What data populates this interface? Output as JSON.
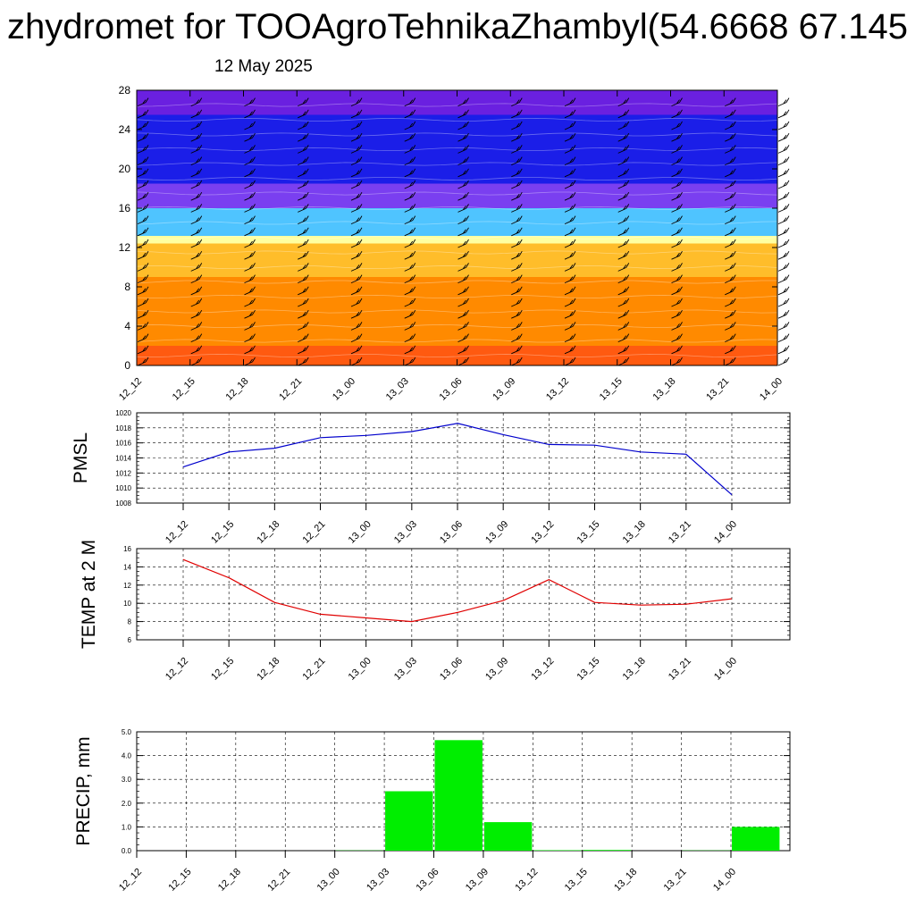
{
  "title": "zhydromet for TOOAgroTehnikaZhambyl(54.6668 67.145",
  "date": "12 May 2025",
  "colors": {
    "pmsl_line": "#0000cc",
    "temp_line": "#e00000",
    "precip_bar": "#00ee00",
    "grid": "#000000"
  },
  "chart_data": [
    {
      "type": "heatmap",
      "name": "cross-section",
      "categories": [
        "12_12",
        "12_15",
        "12_18",
        "12_21",
        "13_00",
        "13_03",
        "13_06",
        "13_09",
        "13_12",
        "13_15",
        "13_18",
        "13_21",
        "14_00"
      ],
      "yticks": [
        "0",
        "4",
        "8",
        "12",
        "16",
        "20",
        "24",
        "28"
      ],
      "ylim": [
        0,
        28
      ],
      "color_bands": [
        {
          "from": 0,
          "to": 2,
          "color": "#ff5a10"
        },
        {
          "from": 2,
          "to": 9,
          "color": "#ff8a00"
        },
        {
          "from": 9,
          "to": 12.4,
          "color": "#ffbd2a"
        },
        {
          "from": 12.4,
          "to": 13.2,
          "color": "#ffffa0"
        },
        {
          "from": 13.2,
          "to": 16,
          "color": "#4fc4ff"
        },
        {
          "from": 16,
          "to": 18.5,
          "color": "#7a3ff0"
        },
        {
          "from": 18.5,
          "to": 25.5,
          "color": "#1b1ee8"
        },
        {
          "from": 25.5,
          "to": 28,
          "color": "#6a20e0"
        }
      ],
      "wind_barbs": true
    },
    {
      "type": "line",
      "name": "pmsl",
      "ylabel": "PMSL",
      "categories": [
        "12_12",
        "12_15",
        "12_18",
        "12_21",
        "13_00",
        "13_03",
        "13_06",
        "13_09",
        "13_12",
        "13_15",
        "13_18",
        "13_21",
        "14_00"
      ],
      "values": [
        1012.8,
        1014.8,
        1015.3,
        1016.7,
        1017.0,
        1017.5,
        1018.6,
        1017.1,
        1015.8,
        1015.7,
        1014.8,
        1014.5,
        1009.1
      ],
      "yticks": [
        "1008",
        "1010",
        "1012",
        "1014",
        "1016",
        "1018",
        "1020"
      ],
      "ylim": [
        1008,
        1020
      ],
      "grid": true
    },
    {
      "type": "line",
      "name": "temp",
      "ylabel": "TEMP at 2 M",
      "categories": [
        "12_12",
        "12_15",
        "12_18",
        "12_21",
        "13_00",
        "13_03",
        "13_06",
        "13_09",
        "13_12",
        "13_15",
        "13_18",
        "13_21",
        "14_00"
      ],
      "values": [
        14.8,
        12.8,
        10.1,
        8.8,
        8.4,
        8.0,
        9.0,
        10.3,
        12.6,
        10.1,
        9.8,
        9.9,
        10.5
      ],
      "yticks": [
        "6",
        "8",
        "10",
        "12",
        "14",
        "16"
      ],
      "ylim": [
        6,
        16
      ],
      "grid": true
    },
    {
      "type": "bar",
      "name": "precip",
      "ylabel": "PRECIP, mm",
      "categories": [
        "12_12",
        "12_15",
        "12_18",
        "12_21",
        "13_00",
        "13_03",
        "13_06",
        "13_09",
        "13_12",
        "13_15",
        "13_18",
        "13_21",
        "14_00"
      ],
      "values": [
        0,
        0,
        0,
        0,
        0.01,
        2.5,
        4.65,
        1.2,
        0.02,
        0.03,
        0,
        0.01,
        1.0
      ],
      "yticks": [
        "0.0",
        "1.0",
        "2.0",
        "3.0",
        "4.0",
        "5.0"
      ],
      "ylim": [
        0,
        5
      ],
      "grid": true
    }
  ]
}
